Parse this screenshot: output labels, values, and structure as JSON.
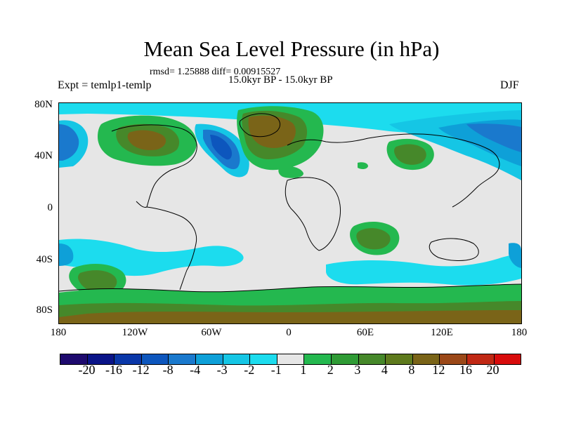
{
  "header": {
    "title": "Mean Sea Level Pressure (in hPa)",
    "stats": "rmsd= 1.25888 diff= 0.00915527",
    "period": "15.0kyr BP - 15.0kyr BP",
    "experiment": "Expt = temlp1-temlp",
    "season": "DJF"
  },
  "axes": {
    "lat_labels": [
      "80N",
      "40N",
      "0",
      "40S",
      "80S"
    ],
    "lon_labels": [
      "180",
      "120W",
      "60W",
      "0",
      "60E",
      "120E",
      "180"
    ]
  },
  "colorbar": {
    "colors": [
      "#1e0a6e",
      "#0a1488",
      "#0a37a8",
      "#0d56bd",
      "#1a79cd",
      "#0ea0d8",
      "#15c6e5",
      "#1cdcee",
      "#e6e6e6",
      "#24b84f",
      "#2f9b35",
      "#46882a",
      "#5e7a1d",
      "#7a6418",
      "#9b4818",
      "#c02814",
      "#d80c0c"
    ],
    "labels": [
      "-20",
      "-16",
      "-12",
      "-8",
      "-4",
      "-3",
      "-2",
      "-1",
      "1",
      "2",
      "3",
      "4",
      "8",
      "12",
      "16",
      "20"
    ]
  },
  "legend_colors": {
    "land_outline": "#000000",
    "neutral": "#e6e6e6",
    "cyan": "#1cdcee",
    "light_blue": "#15c6e5",
    "mid_blue": "#0ea0d8",
    "blue": "#1a79cd",
    "dark_blue": "#0d56bd",
    "green": "#24b84f",
    "olive": "#46882a",
    "brown": "#7a6418"
  }
}
